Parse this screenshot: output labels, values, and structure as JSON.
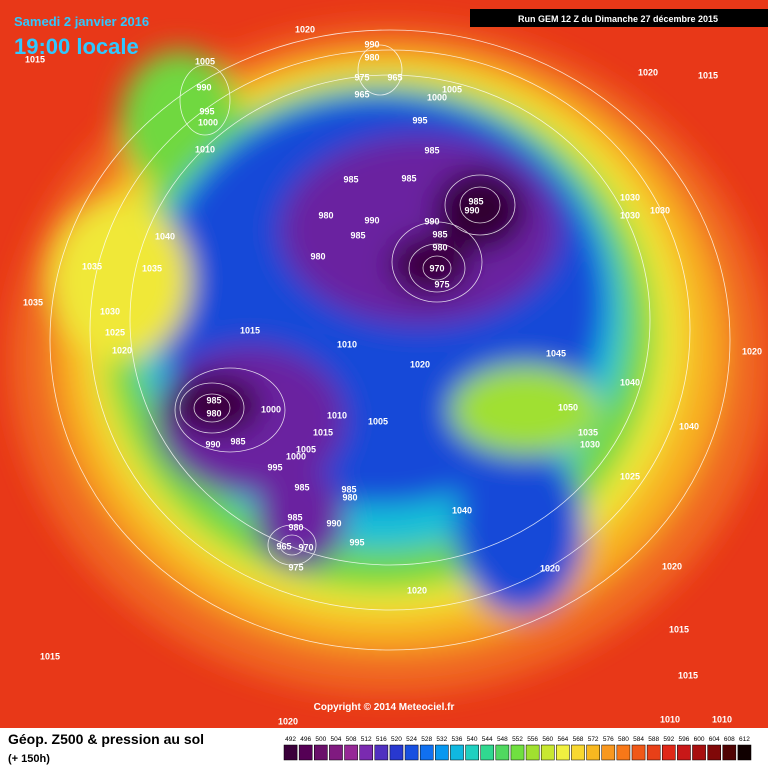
{
  "header": {
    "date": "Samedi 2 janvier 2016",
    "time": "19:00 locale",
    "run": "Run GEM 12 Z du Dimanche 27 décembre 2015"
  },
  "copyright": "Copyright © 2014 Meteociel.fr",
  "footer": {
    "title": "Géop. Z500 & pression au sol",
    "lead": "(+ 150h)"
  },
  "isobar_labels": [
    1020,
    1015,
    990,
    980,
    975,
    965,
    965,
    1005,
    1005,
    1000,
    990,
    995,
    1000,
    1010,
    995,
    985,
    985,
    985,
    1020,
    1015,
    985,
    990,
    980,
    990,
    985,
    990,
    985,
    980,
    970,
    975,
    980,
    1040,
    1035,
    1035,
    1035,
    1030,
    1025,
    1020,
    1030,
    1030,
    1030,
    1015,
    1010,
    1020,
    1045,
    1040,
    1020,
    985,
    980,
    1000,
    990,
    985,
    1010,
    1015,
    1005,
    1005,
    1000,
    995,
    985,
    985,
    980,
    1050,
    1035,
    1030,
    1040,
    1025,
    1040,
    985,
    980,
    965,
    970,
    975,
    990,
    995,
    1020,
    1020,
    1015,
    1020,
    1015,
    1015,
    1020,
    1010,
    1010
  ],
  "scale": {
    "values": [
      492,
      496,
      500,
      504,
      508,
      512,
      516,
      520,
      524,
      528,
      532,
      536,
      540,
      544,
      548,
      552,
      556,
      560,
      564,
      568,
      572,
      576,
      580,
      584,
      588,
      592,
      596,
      600,
      604,
      608,
      612
    ],
    "colors": [
      "#3a003a",
      "#550055",
      "#6a106a",
      "#801a80",
      "#962896",
      "#7a2ab0",
      "#5030c0",
      "#2838d0",
      "#1850e0",
      "#1070f0",
      "#0898f0",
      "#10b8e0",
      "#20d0c0",
      "#30d890",
      "#50d860",
      "#70e040",
      "#a0e030",
      "#c8e830",
      "#f0f040",
      "#f8d830",
      "#f8b820",
      "#f89820",
      "#f87818",
      "#f05818",
      "#e84018",
      "#e02818",
      "#c81818",
      "#a81010",
      "#800808",
      "#500404",
      "#100000"
    ]
  }
}
